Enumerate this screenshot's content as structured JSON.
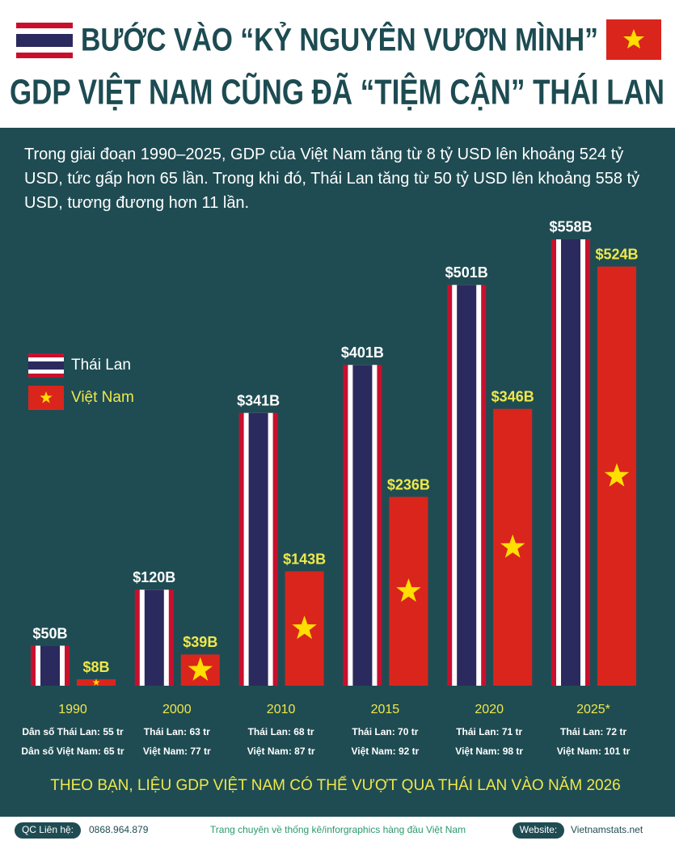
{
  "header": {
    "title_line1": "BƯỚC VÀO “KỶ NGUYÊN VƯƠN MÌNH”",
    "title_line2": "GDP VIỆT NAM CŨNG ĐÃ “TIỆM CẬN” THÁI LAN"
  },
  "chart_data": {
    "type": "bar",
    "description": "Trong giai đoạn 1990–2025, GDP của Việt Nam tăng từ 8 tỷ USD lên khoảng 524 tỷ USD, tức gấp hơn 65 lần. Trong khi đó, Thái Lan tăng từ 50 tỷ USD lên khoảng 558 tỷ USD, tương đương hơn 11 lần.",
    "categories": [
      "1990",
      "2000",
      "2010",
      "2015",
      "2020",
      "2025*"
    ],
    "series": [
      {
        "name": "Thái Lan",
        "color": "#2b2a5e",
        "values": [
          50,
          120,
          341,
          401,
          501,
          558
        ],
        "value_labels": [
          "$50B",
          "$120B",
          "$341B",
          "$401B",
          "$501B",
          "$558B"
        ]
      },
      {
        "name": "Việt Nam",
        "color": "#da251d",
        "values": [
          8,
          39,
          143,
          236,
          346,
          524
        ],
        "value_labels": [
          "$8B",
          "$39B",
          "$143B",
          "$236B",
          "$346B",
          "$524B"
        ]
      }
    ],
    "ylim": [
      0,
      560
    ],
    "population": [
      [
        "Dân số Thái Lan: 55 tr",
        "Dân số Việt Nam: 65 tr"
      ],
      [
        "Thái Lan: 63 tr",
        "Việt Nam: 77 tr"
      ],
      [
        "Thái Lan: 68 tr",
        "Việt Nam: 87 tr"
      ],
      [
        "Thái Lan: 70 tr",
        "Việt Nam: 92 tr"
      ],
      [
        "Thái Lan: 71 tr",
        "Việt Nam: 98 tr"
      ],
      [
        "Thái Lan: 72 tr",
        "Việt Nam: 101 tr"
      ]
    ],
    "question": "THEO BẠN, LIỆU GDP VIỆT NAM CÓ THỂ VƯỢT QUA THÁI LAN VÀO NĂM 2026"
  },
  "footer": {
    "contact_label": "QC Liên hệ:",
    "phone": "0868.964.879",
    "tagline": "Trang chuyên về thống kê/inforgraphics hàng đầu Việt Nam",
    "website_label": "Website:",
    "website": "Vietnamstats.net"
  }
}
